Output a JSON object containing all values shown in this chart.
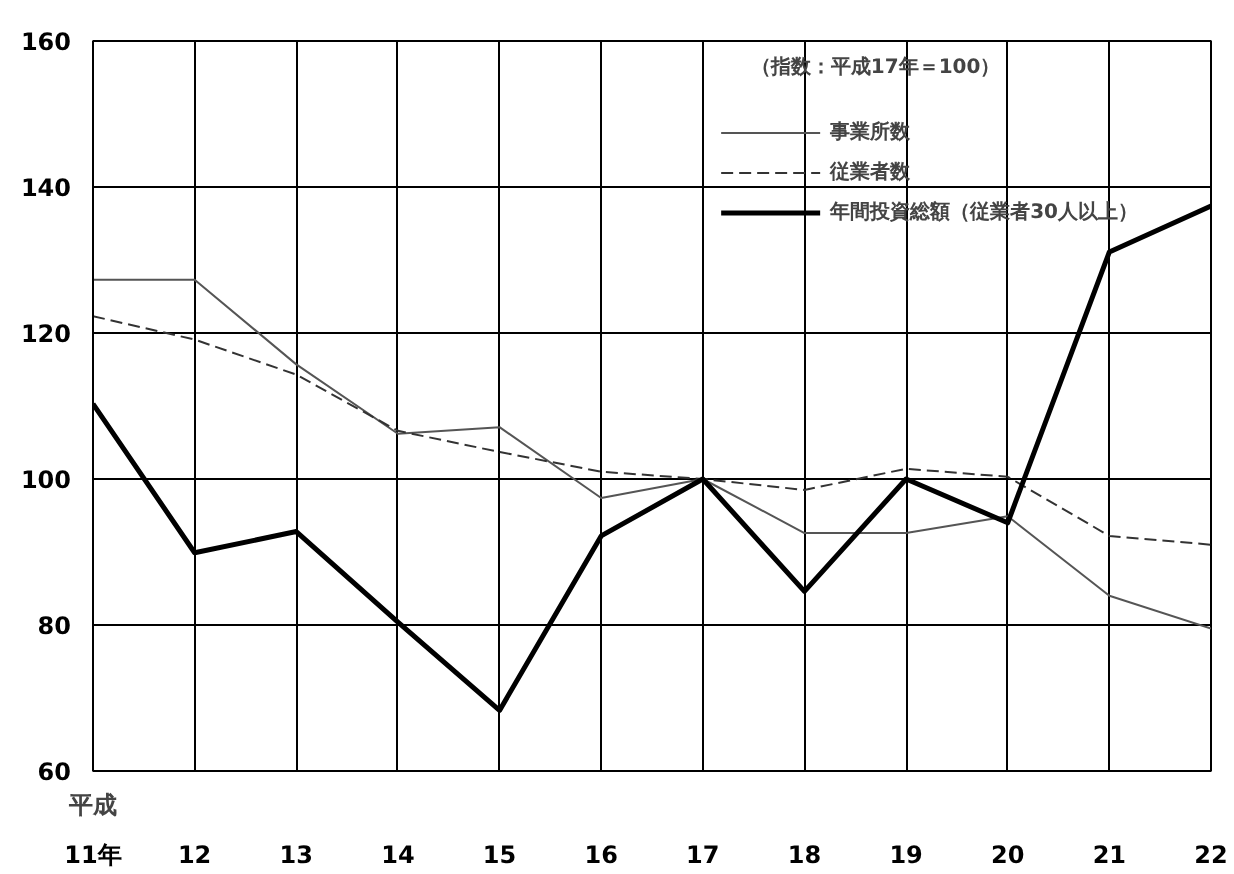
{
  "chart_data": {
    "type": "line",
    "xlabel": "平成",
    "annotations": [
      "（指数：平成17年＝100）"
    ],
    "x": [
      11,
      12,
      13,
      14,
      15,
      16,
      17,
      18,
      19,
      20,
      21,
      22
    ],
    "xlim": [
      11,
      22
    ],
    "xticks": [
      {
        "value": 11,
        "label": "11年"
      },
      12,
      13,
      14,
      15,
      16,
      17,
      18,
      19,
      20,
      21,
      22
    ],
    "ylim": [
      60,
      160
    ],
    "yticks": [
      60,
      80,
      100,
      120,
      140,
      160
    ],
    "grid": true,
    "legend": "top right",
    "marker": "none",
    "series": [
      {
        "name": "事業所数",
        "color": "#555555",
        "line_style": "solid",
        "values": [
          127.3,
          127.3,
          115.7,
          106.2,
          107.1,
          97.4,
          100,
          92.6,
          92.6,
          94.9,
          84.0,
          79.5
        ]
      },
      {
        "name": "従業者数",
        "color": "#333333",
        "line_style": "dashed",
        "values": [
          122.3,
          119.1,
          114.3,
          106.6,
          103.7,
          101.0,
          100,
          98.5,
          101.4,
          100.3,
          92.2,
          91.0
        ]
      },
      {
        "name": "年間投資総額（従業者30人以上）",
        "color": "#000000",
        "line_style": "solid",
        "values": [
          110.3,
          89.9,
          92.8,
          80.4,
          68.3,
          92.2,
          100,
          84.6,
          100.0,
          94.0,
          131.1,
          137.4
        ]
      }
    ]
  }
}
